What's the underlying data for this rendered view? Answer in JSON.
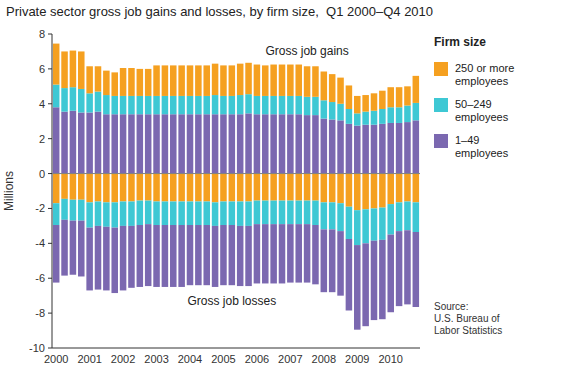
{
  "chart_data": {
    "type": "bar",
    "stacked": true,
    "title": "Private sector gross job gains and losses, by firm size,  Q1 2000–Q4 2010",
    "ylabel": "Millions",
    "annotations": [
      "Gross job gains",
      "Gross job losses"
    ],
    "source": "Source:\nU.S. Bureau of\nLabor Statistics",
    "legend_title": "Firm size",
    "legend": "right",
    "grid": false,
    "categories": [
      "2000",
      null,
      null,
      null,
      "2001",
      null,
      null,
      null,
      "2002",
      null,
      null,
      null,
      "2003",
      null,
      null,
      null,
      "2004",
      null,
      null,
      null,
      "2005",
      null,
      null,
      null,
      "2006",
      null,
      null,
      null,
      "2007",
      null,
      null,
      null,
      "2008",
      null,
      null,
      null,
      "2009",
      null,
      null,
      null,
      "2010",
      null,
      null,
      null
    ],
    "series": [
      {
        "name": "1–49\nemployees",
        "color": "#7B68B0",
        "values": [
          3.8,
          3.55,
          3.6,
          3.5,
          3.5,
          3.55,
          3.4,
          3.4,
          3.4,
          3.4,
          3.4,
          3.4,
          3.4,
          3.4,
          3.4,
          3.4,
          3.4,
          3.4,
          3.4,
          3.4,
          3.4,
          3.4,
          3.4,
          3.45,
          3.4,
          3.4,
          3.4,
          3.4,
          3.4,
          3.4,
          3.35,
          3.35,
          3.15,
          3.1,
          3.05,
          2.85,
          2.75,
          2.8,
          2.8,
          2.85,
          2.9,
          2.9,
          2.95,
          3.05
        ]
      },
      {
        "name": "50–249\nemployees",
        "color": "#3EC8D4",
        "values": [
          1.3,
          1.35,
          1.35,
          1.35,
          1.1,
          1.15,
          1.1,
          1.05,
          1.05,
          1.05,
          1.05,
          1.05,
          1.05,
          1.05,
          1.05,
          1.05,
          1.05,
          1.05,
          1.05,
          1.1,
          1.05,
          1.05,
          1.1,
          1.1,
          1.05,
          1.05,
          1.05,
          1.05,
          1.05,
          1.05,
          1.05,
          1.05,
          1.05,
          1.0,
          0.95,
          0.85,
          0.7,
          0.75,
          0.8,
          0.85,
          0.9,
          0.9,
          0.95,
          1.0
        ]
      },
      {
        "name": "250 or more\nemployees",
        "color": "#F5A020",
        "values": [
          2.35,
          2.1,
          2.1,
          2.15,
          1.55,
          1.45,
          1.4,
          1.35,
          1.6,
          1.6,
          1.55,
          1.55,
          1.75,
          1.75,
          1.75,
          1.75,
          1.75,
          1.75,
          1.75,
          1.8,
          1.75,
          1.75,
          1.8,
          1.8,
          1.8,
          1.75,
          1.8,
          1.8,
          1.8,
          1.8,
          1.75,
          1.75,
          1.65,
          1.6,
          1.5,
          1.35,
          1.0,
          0.95,
          1.0,
          1.05,
          1.15,
          1.15,
          1.1,
          1.55
        ]
      },
      {
        "name": "250 or more\nemployees",
        "color": "#F5A020",
        "values": [
          -1.7,
          -1.45,
          -1.5,
          -1.5,
          -1.65,
          -1.6,
          -1.65,
          -1.65,
          -1.6,
          -1.6,
          -1.55,
          -1.55,
          -1.6,
          -1.6,
          -1.6,
          -1.6,
          -1.6,
          -1.6,
          -1.6,
          -1.65,
          -1.6,
          -1.6,
          -1.6,
          -1.6,
          -1.55,
          -1.55,
          -1.55,
          -1.55,
          -1.55,
          -1.55,
          -1.55,
          -1.55,
          -1.65,
          -1.65,
          -1.7,
          -1.9,
          -2.1,
          -2.05,
          -2.0,
          -1.95,
          -1.75,
          -1.65,
          -1.6,
          -1.65
        ]
      },
      {
        "name": "50–249\nemployees",
        "color": "#3EC8D4",
        "values": [
          -1.25,
          -1.2,
          -1.2,
          -1.2,
          -1.45,
          -1.4,
          -1.4,
          -1.45,
          -1.4,
          -1.4,
          -1.4,
          -1.35,
          -1.35,
          -1.35,
          -1.35,
          -1.35,
          -1.35,
          -1.35,
          -1.35,
          -1.35,
          -1.35,
          -1.35,
          -1.4,
          -1.4,
          -1.35,
          -1.35,
          -1.35,
          -1.35,
          -1.35,
          -1.35,
          -1.35,
          -1.4,
          -1.55,
          -1.55,
          -1.6,
          -1.85,
          -2.0,
          -1.95,
          -1.85,
          -1.85,
          -1.75,
          -1.65,
          -1.65,
          -1.7
        ]
      },
      {
        "name": "1–49\nemployees",
        "color": "#7B68B0",
        "values": [
          -3.3,
          -3.2,
          -3.1,
          -3.2,
          -3.6,
          -3.65,
          -3.65,
          -3.75,
          -3.7,
          -3.55,
          -3.55,
          -3.55,
          -3.55,
          -3.55,
          -3.55,
          -3.55,
          -3.45,
          -3.45,
          -3.45,
          -3.5,
          -3.45,
          -3.45,
          -3.45,
          -3.45,
          -3.4,
          -3.4,
          -3.4,
          -3.4,
          -3.35,
          -3.35,
          -3.35,
          -3.4,
          -3.6,
          -3.6,
          -3.7,
          -4.1,
          -4.85,
          -4.75,
          -4.55,
          -4.55,
          -4.45,
          -4.3,
          -4.25,
          -4.3
        ]
      }
    ],
    "ylim": [
      -10,
      8
    ],
    "yticks": [
      -10,
      -8,
      -6,
      -4,
      -2,
      0,
      2,
      4,
      6,
      8
    ]
  }
}
